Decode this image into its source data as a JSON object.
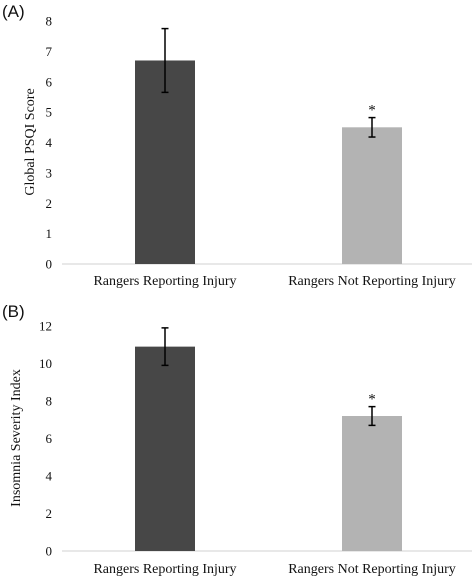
{
  "chart_data": [
    {
      "type": "bar",
      "panel_label": "(A)",
      "categories": [
        "Rangers Reporting Injury",
        "Rangers Not Reporting Injury"
      ],
      "values": [
        6.7,
        4.5
      ],
      "errors": [
        1.05,
        0.32
      ],
      "annotations": [
        "",
        "*"
      ],
      "colors": [
        "#474747",
        "#b3b3b3"
      ],
      "xlabel": "",
      "ylabel": "Global PSQI Score",
      "ylim": [
        0,
        8
      ],
      "yticks": [
        0,
        1,
        2,
        3,
        4,
        5,
        6,
        7,
        8
      ],
      "ytick_labels": [
        "0",
        "1",
        "2",
        "3",
        "4",
        "5",
        "6",
        "7",
        "8"
      ],
      "grid": false,
      "legend": "none"
    },
    {
      "type": "bar",
      "panel_label": "(B)",
      "categories": [
        "Rangers Reporting Injury",
        "Rangers Not Reporting Injury"
      ],
      "values": [
        10.9,
        7.2
      ],
      "errors": [
        1.0,
        0.5
      ],
      "annotations": [
        "",
        "*"
      ],
      "colors": [
        "#474747",
        "#b3b3b3"
      ],
      "xlabel": "",
      "ylabel": "Insomnia Severity Index",
      "ylim": [
        0,
        12
      ],
      "yticks": [
        0,
        2,
        4,
        6,
        8,
        10,
        12
      ],
      "ytick_labels": [
        "0",
        "2",
        "4",
        "6",
        "8",
        "10",
        "12"
      ],
      "grid": false,
      "legend": "none"
    }
  ]
}
